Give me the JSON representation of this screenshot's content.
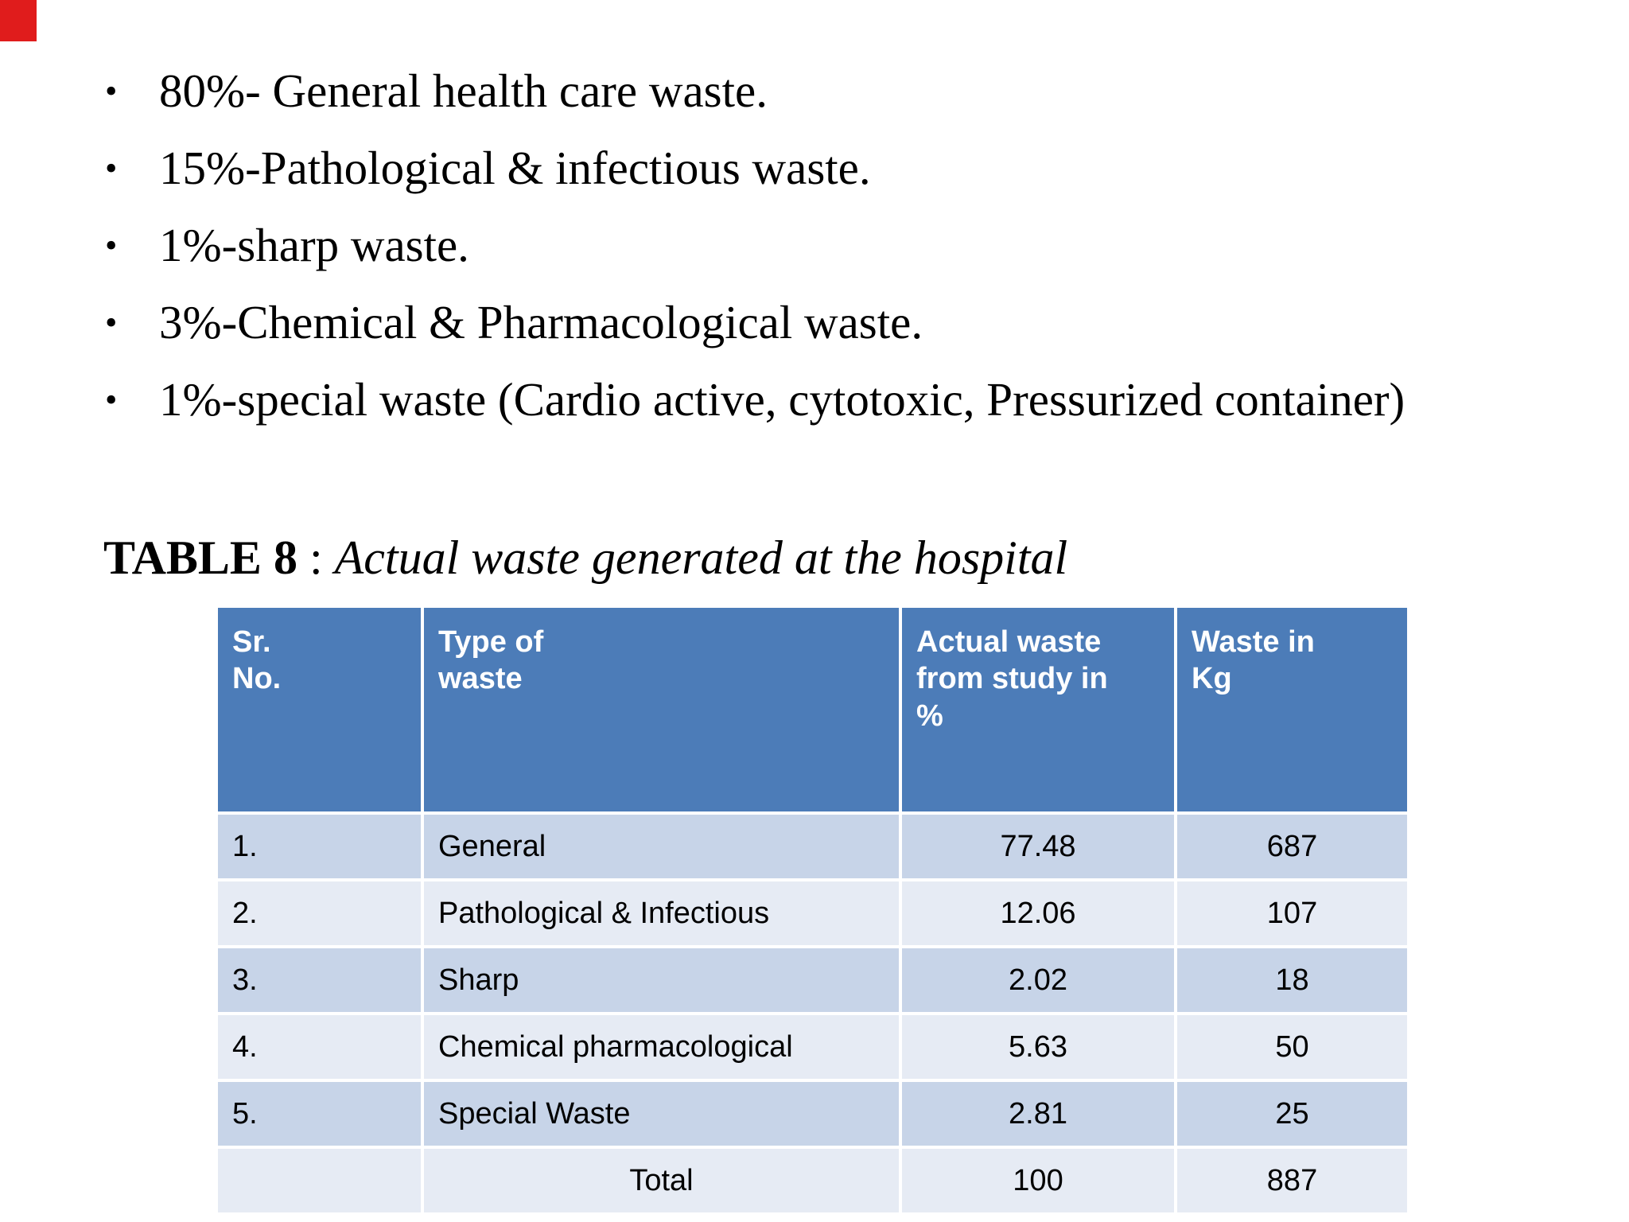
{
  "bullet_char": "•",
  "bullets": [
    "80%- General health care waste.",
    "15%-Pathological & infectious waste.",
    "1%-sharp waste.",
    "3%-Chemical & Pharmacological waste.",
    "1%-special waste (Cardio active, cytotoxic, Pressurized container)"
  ],
  "caption": {
    "label": "TABLE 8",
    "separator": " : ",
    "title": "Actual waste generated at the hospital"
  },
  "table": {
    "columns": [
      "Sr.\nNo.",
      "Type of\nwaste",
      "Actual waste\nfrom study in\n%",
      "Waste in\nKg"
    ],
    "rows": [
      {
        "sr": "1.",
        "type": "General",
        "pct": "77.48",
        "kg": "687"
      },
      {
        "sr": "2.",
        "type": "Pathological & Infectious",
        "pct": "12.06",
        "kg": "107"
      },
      {
        "sr": "3.",
        "type": "Sharp",
        "pct": "2.02",
        "kg": "18"
      },
      {
        "sr": "4.",
        "type": "Chemical pharmacological",
        "pct": "5.63",
        "kg": "50"
      },
      {
        "sr": "5.",
        "type": "Special Waste",
        "pct": "2.81",
        "kg": "25"
      },
      {
        "sr": "",
        "type": "Total",
        "pct": "100",
        "kg": "887"
      }
    ]
  },
  "colors": {
    "header_bg": "#4c7cb8",
    "row_odd": "#c7d4e8",
    "row_even": "#e6ebf4",
    "corner_red": "#e01c1c"
  }
}
